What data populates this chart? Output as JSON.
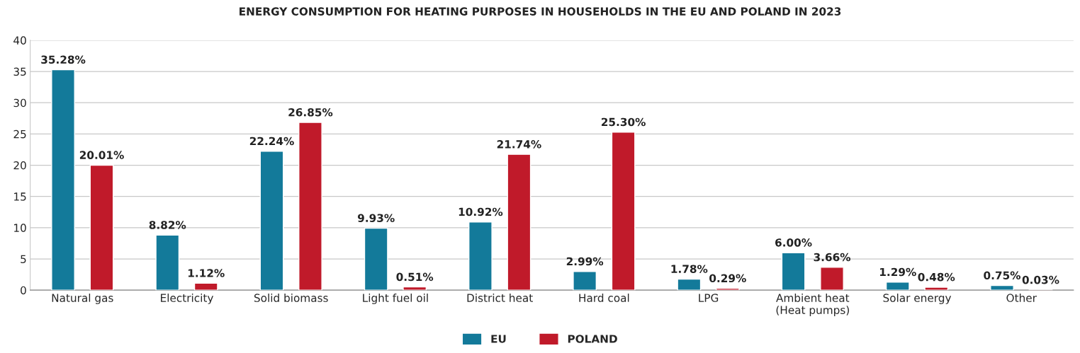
{
  "chart_data": {
    "type": "bar",
    "title": "ENERGY CONSUMPTION FOR HEATING PURPOSES IN HOUSEHOLDS IN THE EU AND POLAND IN 2023",
    "categories": [
      "Natural gas",
      "Electricity",
      "Solid biomass",
      "Light fuel oil",
      "District heat",
      "Hard coal",
      "LPG",
      "Ambient heat\n(Heat pumps)",
      "Solar energy",
      "Other"
    ],
    "series": [
      {
        "name": "EU",
        "color": "#137a9a",
        "values": [
          35.28,
          8.82,
          22.24,
          9.93,
          10.92,
          2.99,
          1.78,
          6.0,
          1.29,
          0.75
        ],
        "value_labels": [
          "35.28%",
          "8.82%",
          "22.24%",
          "9.93%",
          "10.92%",
          "2.99%",
          "1.78%",
          "6.00%",
          "1.29%",
          "0.75%"
        ]
      },
      {
        "name": "POLAND",
        "color": "#c01a2a",
        "values": [
          20.01,
          1.12,
          26.85,
          0.51,
          21.74,
          25.3,
          0.29,
          3.66,
          0.48,
          0.03
        ],
        "value_labels": [
          "20.01%",
          "1.12%",
          "26.85%",
          "0.51%",
          "21.74%",
          "25.30%",
          "0.29%",
          "3.66%",
          "0.48%",
          "0.03%"
        ]
      }
    ],
    "ylim": [
      0,
      40
    ],
    "yticks": [
      0,
      5,
      10,
      15,
      20,
      25,
      30,
      35,
      40
    ],
    "grid": "y",
    "legend": "bottom"
  }
}
